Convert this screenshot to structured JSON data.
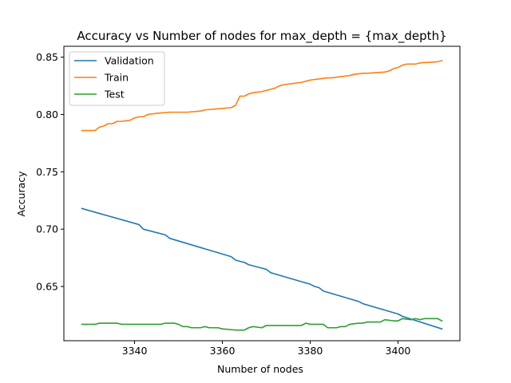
{
  "chart_data": {
    "type": "line",
    "title": "Accuracy vs Number of nodes for max_depth = {max_depth}",
    "xlabel": "Number of nodes",
    "ylabel": "Accuracy",
    "xlim": [
      3323.9,
      3414.1
    ],
    "ylim": [
      0.6027,
      0.8595
    ],
    "xticks": [
      3340,
      3360,
      3380,
      3400
    ],
    "yticks": [
      0.65,
      0.7,
      0.75,
      0.8,
      0.85
    ],
    "ytick_labels": [
      "0.65",
      "0.70",
      "0.75",
      "0.80",
      "0.85"
    ],
    "grid": false,
    "legend_position": "upper-left",
    "series": [
      {
        "name": "Validation",
        "color": "#1f77b4",
        "points": [
          [
            3328,
            0.718
          ],
          [
            3341,
            0.704
          ],
          [
            3342,
            0.7
          ],
          [
            3347,
            0.695
          ],
          [
            3348,
            0.692
          ],
          [
            3362,
            0.676
          ],
          [
            3363,
            0.673
          ],
          [
            3365,
            0.671
          ],
          [
            3366,
            0.669
          ],
          [
            3370,
            0.665
          ],
          [
            3371,
            0.662
          ],
          [
            3380,
            0.652
          ],
          [
            3381,
            0.65
          ],
          [
            3382,
            0.649
          ],
          [
            3383,
            0.646
          ],
          [
            3391,
            0.637
          ],
          [
            3392,
            0.635
          ],
          [
            3400,
            0.626
          ],
          [
            3401,
            0.624
          ],
          [
            3410,
            0.613
          ]
        ]
      },
      {
        "name": "Train",
        "color": "#ff7f0e",
        "points": [
          [
            3328,
            0.786
          ],
          [
            3331,
            0.786
          ],
          [
            3332,
            0.789
          ],
          [
            3333,
            0.79
          ],
          [
            3334,
            0.792
          ],
          [
            3335,
            0.792
          ],
          [
            3336,
            0.794
          ],
          [
            3337,
            0.794
          ],
          [
            3339,
            0.795
          ],
          [
            3340,
            0.797
          ],
          [
            3341,
            0.798
          ],
          [
            3342,
            0.798
          ],
          [
            3343,
            0.8
          ],
          [
            3345,
            0.801
          ],
          [
            3348,
            0.802
          ],
          [
            3352,
            0.802
          ],
          [
            3355,
            0.803
          ],
          [
            3356,
            0.804
          ],
          [
            3359,
            0.805
          ],
          [
            3362,
            0.806
          ],
          [
            3363,
            0.808
          ],
          [
            3364,
            0.816
          ],
          [
            3365,
            0.816
          ],
          [
            3366,
            0.818
          ],
          [
            3367,
            0.819
          ],
          [
            3369,
            0.82
          ],
          [
            3370,
            0.821
          ],
          [
            3371,
            0.822
          ],
          [
            3372,
            0.823
          ],
          [
            3373,
            0.825
          ],
          [
            3374,
            0.826
          ],
          [
            3376,
            0.827
          ],
          [
            3378,
            0.828
          ],
          [
            3379,
            0.829
          ],
          [
            3380,
            0.83
          ],
          [
            3382,
            0.831
          ],
          [
            3384,
            0.832
          ],
          [
            3385,
            0.832
          ],
          [
            3387,
            0.833
          ],
          [
            3389,
            0.834
          ],
          [
            3390,
            0.835
          ],
          [
            3392,
            0.836
          ],
          [
            3393,
            0.836
          ],
          [
            3397,
            0.837
          ],
          [
            3398,
            0.838
          ],
          [
            3399,
            0.84
          ],
          [
            3400,
            0.841
          ],
          [
            3401,
            0.843
          ],
          [
            3402,
            0.844
          ],
          [
            3404,
            0.844
          ],
          [
            3405,
            0.845
          ],
          [
            3409,
            0.846
          ],
          [
            3410,
            0.847
          ]
        ]
      },
      {
        "name": "Test",
        "color": "#2ca02c",
        "points": [
          [
            3328,
            0.617
          ],
          [
            3331,
            0.617
          ],
          [
            3332,
            0.618
          ],
          [
            3336,
            0.618
          ],
          [
            3337,
            0.617
          ],
          [
            3346,
            0.617
          ],
          [
            3347,
            0.618
          ],
          [
            3349,
            0.618
          ],
          [
            3350,
            0.617
          ],
          [
            3351,
            0.615
          ],
          [
            3352,
            0.615
          ],
          [
            3353,
            0.614
          ],
          [
            3355,
            0.614
          ],
          [
            3356,
            0.615
          ],
          [
            3357,
            0.614
          ],
          [
            3359,
            0.614
          ],
          [
            3360,
            0.613
          ],
          [
            3363,
            0.612
          ],
          [
            3365,
            0.612
          ],
          [
            3366,
            0.614
          ],
          [
            3367,
            0.615
          ],
          [
            3369,
            0.614
          ],
          [
            3370,
            0.616
          ],
          [
            3378,
            0.616
          ],
          [
            3379,
            0.618
          ],
          [
            3380,
            0.617
          ],
          [
            3383,
            0.617
          ],
          [
            3384,
            0.614
          ],
          [
            3386,
            0.614
          ],
          [
            3387,
            0.615
          ],
          [
            3388,
            0.615
          ],
          [
            3389,
            0.617
          ],
          [
            3391,
            0.618
          ],
          [
            3392,
            0.618
          ],
          [
            3393,
            0.619
          ],
          [
            3396,
            0.619
          ],
          [
            3397,
            0.621
          ],
          [
            3399,
            0.62
          ],
          [
            3400,
            0.62
          ],
          [
            3401,
            0.622
          ],
          [
            3403,
            0.621
          ],
          [
            3404,
            0.622
          ],
          [
            3405,
            0.621
          ],
          [
            3406,
            0.622
          ],
          [
            3409,
            0.622
          ],
          [
            3410,
            0.62
          ]
        ]
      }
    ]
  }
}
